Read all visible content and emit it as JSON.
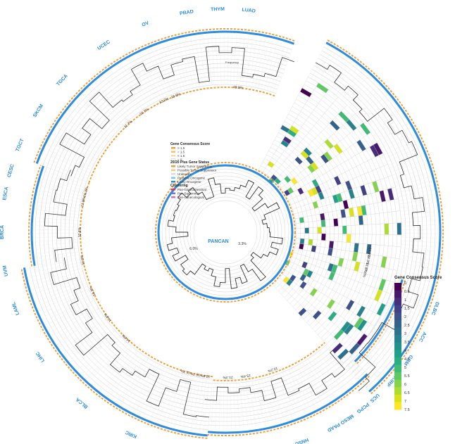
{
  "center": {
    "label": "PANCAN",
    "pct_a": "6.0%",
    "pct_b": "3.3%",
    "frequency_label": "Frequency"
  },
  "heatmap_frequency_label": "Frequency",
  "legend": {
    "consensus_title": "Gene Consensus Score",
    "consensus_items": [
      {
        "label": "> 1.5",
        "color": "#f0a03a"
      },
      {
        "label": "= 1.5",
        "color": "#f6c06b"
      },
      {
        "label": "< 1.5",
        "color": "#f8dca4"
      },
      {
        "label": "= 0",
        "color": "#ffffff"
      }
    ],
    "status_title": "20/20 Plus Gene Status",
    "status_items": [
      {
        "label": "Likely Tumor Suppressor",
        "color": "#f0a03a"
      },
      {
        "label": "Possible Tumor Suppressor",
        "color": "#f6c88a"
      },
      {
        "label": "Unknown",
        "color": "#dddddd"
      },
      {
        "label": "Possible Oncogene",
        "color": "#7fc4ea"
      },
      {
        "label": "Likely Oncogene",
        "color": "#2b8ce0"
      }
    ],
    "cluster_title": "Clustering",
    "cluster_items": [
      {
        "label": "Pan-Gastrointestinal",
        "color": "#e8315b"
      },
      {
        "label": "Pan-Squamous",
        "color": "#7d6fd8"
      },
      {
        "label": "Pan-Gynecological",
        "color": "#d56fd0"
      }
    ]
  },
  "colorbar": {
    "title": "Gene Consensus Score",
    "ticks": [
      "0",
      "0.5",
      "1",
      "1.5",
      "2",
      "2.5",
      "3",
      "3.5",
      "4",
      "4.5",
      "5",
      "5.5",
      "6",
      "6.5",
      "7",
      "7.5"
    ],
    "colors": [
      "#440154",
      "#48186a",
      "#472d7b",
      "#424086",
      "#3b528b",
      "#33638d",
      "#2c728e",
      "#26828e",
      "#21918c",
      "#1fa088",
      "#28ae80",
      "#3fbc73",
      "#5ec962",
      "#84d44b",
      "#addc30",
      "#d8e219",
      "#fde725"
    ]
  },
  "cancer_types": [
    {
      "label": "UCEC",
      "angle": 237
    },
    {
      "label": "OV",
      "angle": 249
    },
    {
      "label": "PRAD",
      "angle": 260
    },
    {
      "label": "THYM",
      "angle": 268
    },
    {
      "label": "LUAD",
      "angle": 276
    },
    {
      "label": "TGCA",
      "angle": 223
    },
    {
      "label": "SKCM",
      "angle": 213
    },
    {
      "label": "TGCT",
      "angle": 203
    },
    {
      "label": "CESC",
      "angle": 196
    },
    {
      "label": "ESCA",
      "angle": 190
    },
    {
      "label": "BRCA",
      "angle": 180
    },
    {
      "label": "UVM",
      "angle": 170
    },
    {
      "label": "LAML",
      "angle": 160
    },
    {
      "label": "LIHC",
      "angle": 146
    },
    {
      "label": "BLCA",
      "angle": 130
    },
    {
      "label": "KIRC",
      "angle": 115
    },
    {
      "label": "COADREAD",
      "angle": 104
    },
    {
      "label": "LGG",
      "angle": 92
    },
    {
      "label": "STAD",
      "angle": 82
    },
    {
      "label": "HNSC",
      "angle": 70
    },
    {
      "label": "PAAD",
      "angle": 61
    },
    {
      "label": "MESO",
      "angle": 57
    },
    {
      "label": "PCPG",
      "angle": 52
    },
    {
      "label": "UCS",
      "angle": 48
    },
    {
      "label": "KIRP",
      "angle": 42
    },
    {
      "label": "GBM",
      "angle": 35
    },
    {
      "label": "ACC",
      "angle": 28
    },
    {
      "label": "DLBC",
      "angle": 20
    }
  ],
  "pct_labels": [
    {
      "text": "16.2%",
      "angle": 196
    },
    {
      "text": "17.8%",
      "angle": 192
    },
    {
      "text": "12.6%",
      "angle": 180
    },
    {
      "text": "50.0%",
      "angle": 169
    },
    {
      "text": "10.2%",
      "angle": 156
    },
    {
      "text": "13.5%",
      "angle": 144
    },
    {
      "text": "14.6%",
      "angle": 133
    },
    {
      "text": "11.7%",
      "angle": 106
    },
    {
      "text": "10.7%",
      "angle": 102
    },
    {
      "text": "13.6%",
      "angle": 98
    },
    {
      "text": "21.3%",
      "angle": 89
    },
    {
      "text": "15.4%",
      "angle": 82
    },
    {
      "text": "10.2%",
      "angle": 71
    },
    {
      "text": "10.7%",
      "angle": 236
    },
    {
      "text": "11.7%",
      "angle": 228
    },
    {
      "text": "13.3%",
      "angle": 245
    },
    {
      "text": "10.0%",
      "angle": 250
    },
    {
      "text": "49.9%",
      "angle": 275
    },
    {
      "text": "27.0%",
      "angle": 16
    },
    {
      "text": "18.9%",
      "angle": 11
    },
    {
      "text": "13.5%",
      "angle": 14
    },
    {
      "text": "24.3%",
      "angle": 8
    }
  ],
  "rings": [
    {
      "label": "RNF43 ARID1A BCOR PTEN",
      "angle": 0
    }
  ]
}
